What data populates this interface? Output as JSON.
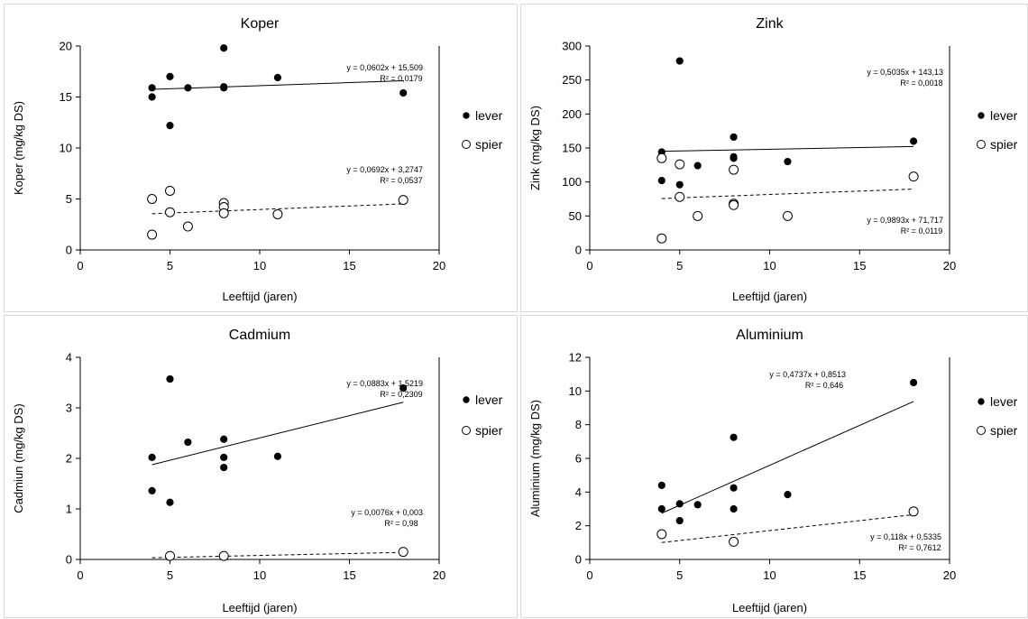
{
  "chart_data": [
    {
      "type": "scatter",
      "title": "Koper",
      "xlabel": "Leeftijd (jaren)",
      "ylabel": "Koper  (mg/kg DS)",
      "xlim": [
        0,
        20
      ],
      "ylim": [
        0,
        20
      ],
      "xticks": [
        0,
        5,
        10,
        15,
        20
      ],
      "yticks": [
        0,
        5,
        10,
        15,
        20
      ],
      "legend_position": "right",
      "series": [
        {
          "name": "lever",
          "marker": "filled",
          "x": [
            4,
            4,
            5,
            5,
            6,
            8,
            8,
            8,
            11,
            18
          ],
          "y": [
            15.9,
            15.0,
            17.0,
            12.2,
            15.9,
            19.8,
            15.9,
            16.0,
            16.9,
            15.4
          ],
          "trendline": {
            "slope": 0.0602,
            "intercept": 15.509,
            "x_range": [
              4,
              18
            ],
            "style": "solid"
          },
          "equation": "y = 0,0602x + 15,509",
          "r2": "R² = 0,0179"
        },
        {
          "name": "spier",
          "marker": "open",
          "x": [
            4,
            4,
            5,
            5,
            6,
            8,
            8,
            8,
            11,
            18
          ],
          "y": [
            5.0,
            1.5,
            5.8,
            3.7,
            2.3,
            4.6,
            4.2,
            3.6,
            3.5,
            4.9
          ],
          "trendline": {
            "slope": 0.0692,
            "intercept": 3.2747,
            "x_range": [
              4,
              18
            ],
            "style": "dashed"
          },
          "equation": "y = 0,0692x + 3,2747",
          "r2": "R² = 0,0537"
        }
      ]
    },
    {
      "type": "scatter",
      "title": "Zink",
      "xlabel": "Leeftijd (jaren)",
      "ylabel": "Zink  (mg/kg DS)",
      "xlim": [
        0,
        20
      ],
      "ylim": [
        0,
        300
      ],
      "xticks": [
        0,
        5,
        10,
        15,
        20
      ],
      "yticks": [
        0,
        50,
        100,
        150,
        200,
        250,
        300
      ],
      "legend_position": "right",
      "series": [
        {
          "name": "lever",
          "marker": "filled",
          "x": [
            4,
            4,
            5,
            5,
            6,
            8,
            8,
            8,
            11,
            18
          ],
          "y": [
            144,
            102,
            278,
            96,
            124,
            166,
            137,
            135,
            130,
            160
          ],
          "trendline": {
            "slope": 0.5035,
            "intercept": 143.13,
            "x_range": [
              4,
              18
            ],
            "style": "solid"
          },
          "equation": "y = 0,5035x + 143,13",
          "r2": "R² = 0,0018"
        },
        {
          "name": "spier",
          "marker": "open",
          "x": [
            4,
            4,
            5,
            5,
            6,
            8,
            8,
            8,
            11,
            18
          ],
          "y": [
            135,
            17,
            126,
            78,
            50,
            118,
            68,
            66,
            50,
            108
          ],
          "trendline": {
            "slope": 0.9893,
            "intercept": 71.717,
            "x_range": [
              4,
              18
            ],
            "style": "dashed"
          },
          "equation": "y = 0,9893x + 71,717",
          "r2": "R² = 0,0119"
        }
      ]
    },
    {
      "type": "scatter",
      "title": "Cadmium",
      "xlabel": "Leeftijd (jaren)",
      "ylabel": "Cadmiun  (mg/kg DS)",
      "xlim": [
        0,
        20
      ],
      "ylim": [
        0,
        4
      ],
      "xticks": [
        0,
        5,
        10,
        15,
        20
      ],
      "yticks": [
        0,
        1,
        2,
        3,
        4
      ],
      "legend_position": "right",
      "series": [
        {
          "name": "lever",
          "marker": "filled",
          "x": [
            4,
            4,
            5,
            5,
            6,
            8,
            8,
            8,
            11,
            18
          ],
          "y": [
            2.02,
            1.36,
            3.57,
            1.13,
            2.32,
            2.38,
            2.02,
            1.82,
            2.04,
            3.39
          ],
          "trendline": {
            "slope": 0.0883,
            "intercept": 1.5219,
            "x_range": [
              4,
              18
            ],
            "style": "solid"
          },
          "equation": "y = 0,0883x + 1,5219",
          "r2": "R² = 0,2309"
        },
        {
          "name": "spier",
          "marker": "open",
          "x": [
            5,
            8,
            18
          ],
          "y": [
            0.07,
            0.07,
            0.15
          ],
          "trendline": {
            "slope": 0.0076,
            "intercept": 0.003,
            "x_range": [
              4,
              18
            ],
            "style": "dashed"
          },
          "equation": "y = 0,0076x + 0,003",
          "r2": "R² = 0,98"
        }
      ]
    },
    {
      "type": "scatter",
      "title": "Aluminium",
      "xlabel": "Leeftijd (jaren)",
      "ylabel": "Aluminium  (mg/kg DS)",
      "xlim": [
        0,
        20
      ],
      "ylim": [
        0,
        12
      ],
      "xticks": [
        0,
        5,
        10,
        15,
        20
      ],
      "yticks": [
        0,
        2,
        4,
        6,
        8,
        10,
        12
      ],
      "legend_position": "right",
      "series": [
        {
          "name": "lever",
          "marker": "filled",
          "x": [
            4,
            4,
            5,
            5,
            6,
            8,
            8,
            8,
            11,
            18
          ],
          "y": [
            4.4,
            3.0,
            3.3,
            2.3,
            3.25,
            7.25,
            4.25,
            3.0,
            3.85,
            10.5
          ],
          "trendline": {
            "slope": 0.4737,
            "intercept": 0.8513,
            "x_range": [
              4,
              18
            ],
            "style": "solid"
          },
          "equation": "y = 0,4737x + 0,8513",
          "r2": "R² = 0,646"
        },
        {
          "name": "spier",
          "marker": "open",
          "x": [
            4,
            8,
            18
          ],
          "y": [
            1.5,
            1.05,
            2.85
          ],
          "trendline": {
            "slope": 0.118,
            "intercept": 0.5335,
            "x_range": [
              4,
              18
            ],
            "style": "dashed"
          },
          "equation": "y = 0,118x + 0,5335",
          "r2": "R² = 0,7612"
        }
      ]
    }
  ]
}
